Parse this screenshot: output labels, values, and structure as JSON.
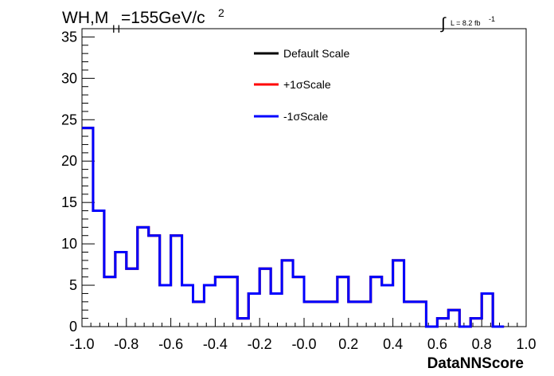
{
  "chart_data": {
    "type": "line",
    "title_main": "WH,M",
    "title_sub": "H",
    "title_rest": "=155GeV/c",
    "title_sup": "2",
    "lumi_label": "L = 8.2 fb",
    "lumi_sup": "-1",
    "xlabel": "DataNNScore",
    "ylabel": "",
    "xlim": [
      -1.0,
      1.0
    ],
    "ylim": [
      0,
      36
    ],
    "x_ticks": [
      -1.0,
      -0.8,
      -0.6,
      -0.4,
      -0.2,
      0.0,
      0.2,
      0.4,
      0.6,
      0.8,
      1.0
    ],
    "x_tick_labels": [
      "-1.0",
      "-0.8",
      "-0.6",
      "-0.4",
      "-0.2",
      "-0.0",
      "0.2",
      "0.4",
      "0.6",
      "0.8",
      "1.0"
    ],
    "y_ticks": [
      0,
      5,
      10,
      15,
      20,
      25,
      30,
      35
    ],
    "y_tick_labels": [
      "0",
      "5",
      "10",
      "15",
      "20",
      "25",
      "30",
      "35"
    ],
    "bin_edges_start": -1.0,
    "bin_width": 0.05,
    "legend_position": "top-center",
    "series": [
      {
        "name": "Default Scale",
        "color": "#000000",
        "values": [
          24,
          14,
          6,
          9,
          7,
          12,
          11,
          5,
          11,
          5,
          3,
          5,
          6,
          6,
          1,
          4,
          7,
          4,
          8,
          6,
          3,
          3,
          3,
          6,
          3,
          3,
          6,
          5,
          8,
          3,
          3,
          0,
          1,
          2,
          0,
          1,
          4,
          0
        ]
      },
      {
        "name": "+1σScale",
        "color": "#ff0000",
        "values": [
          24,
          14,
          6,
          9,
          7,
          12,
          11,
          5,
          11,
          5,
          3,
          5,
          6,
          6,
          1,
          4,
          7,
          4,
          8,
          6,
          3,
          3,
          3,
          6,
          3,
          3,
          6,
          5,
          8,
          3,
          3,
          0,
          1,
          2,
          0,
          1,
          4,
          0
        ]
      },
      {
        "name": "-1σScale",
        "color": "#0000ff",
        "values": [
          24,
          14,
          6,
          9,
          7,
          12,
          11,
          5,
          11,
          5,
          3,
          5,
          6,
          6,
          1,
          4,
          7,
          4,
          8,
          6,
          3,
          3,
          3,
          6,
          3,
          3,
          6,
          5,
          8,
          3,
          3,
          0,
          1,
          2,
          0,
          1,
          4,
          0
        ]
      }
    ]
  }
}
